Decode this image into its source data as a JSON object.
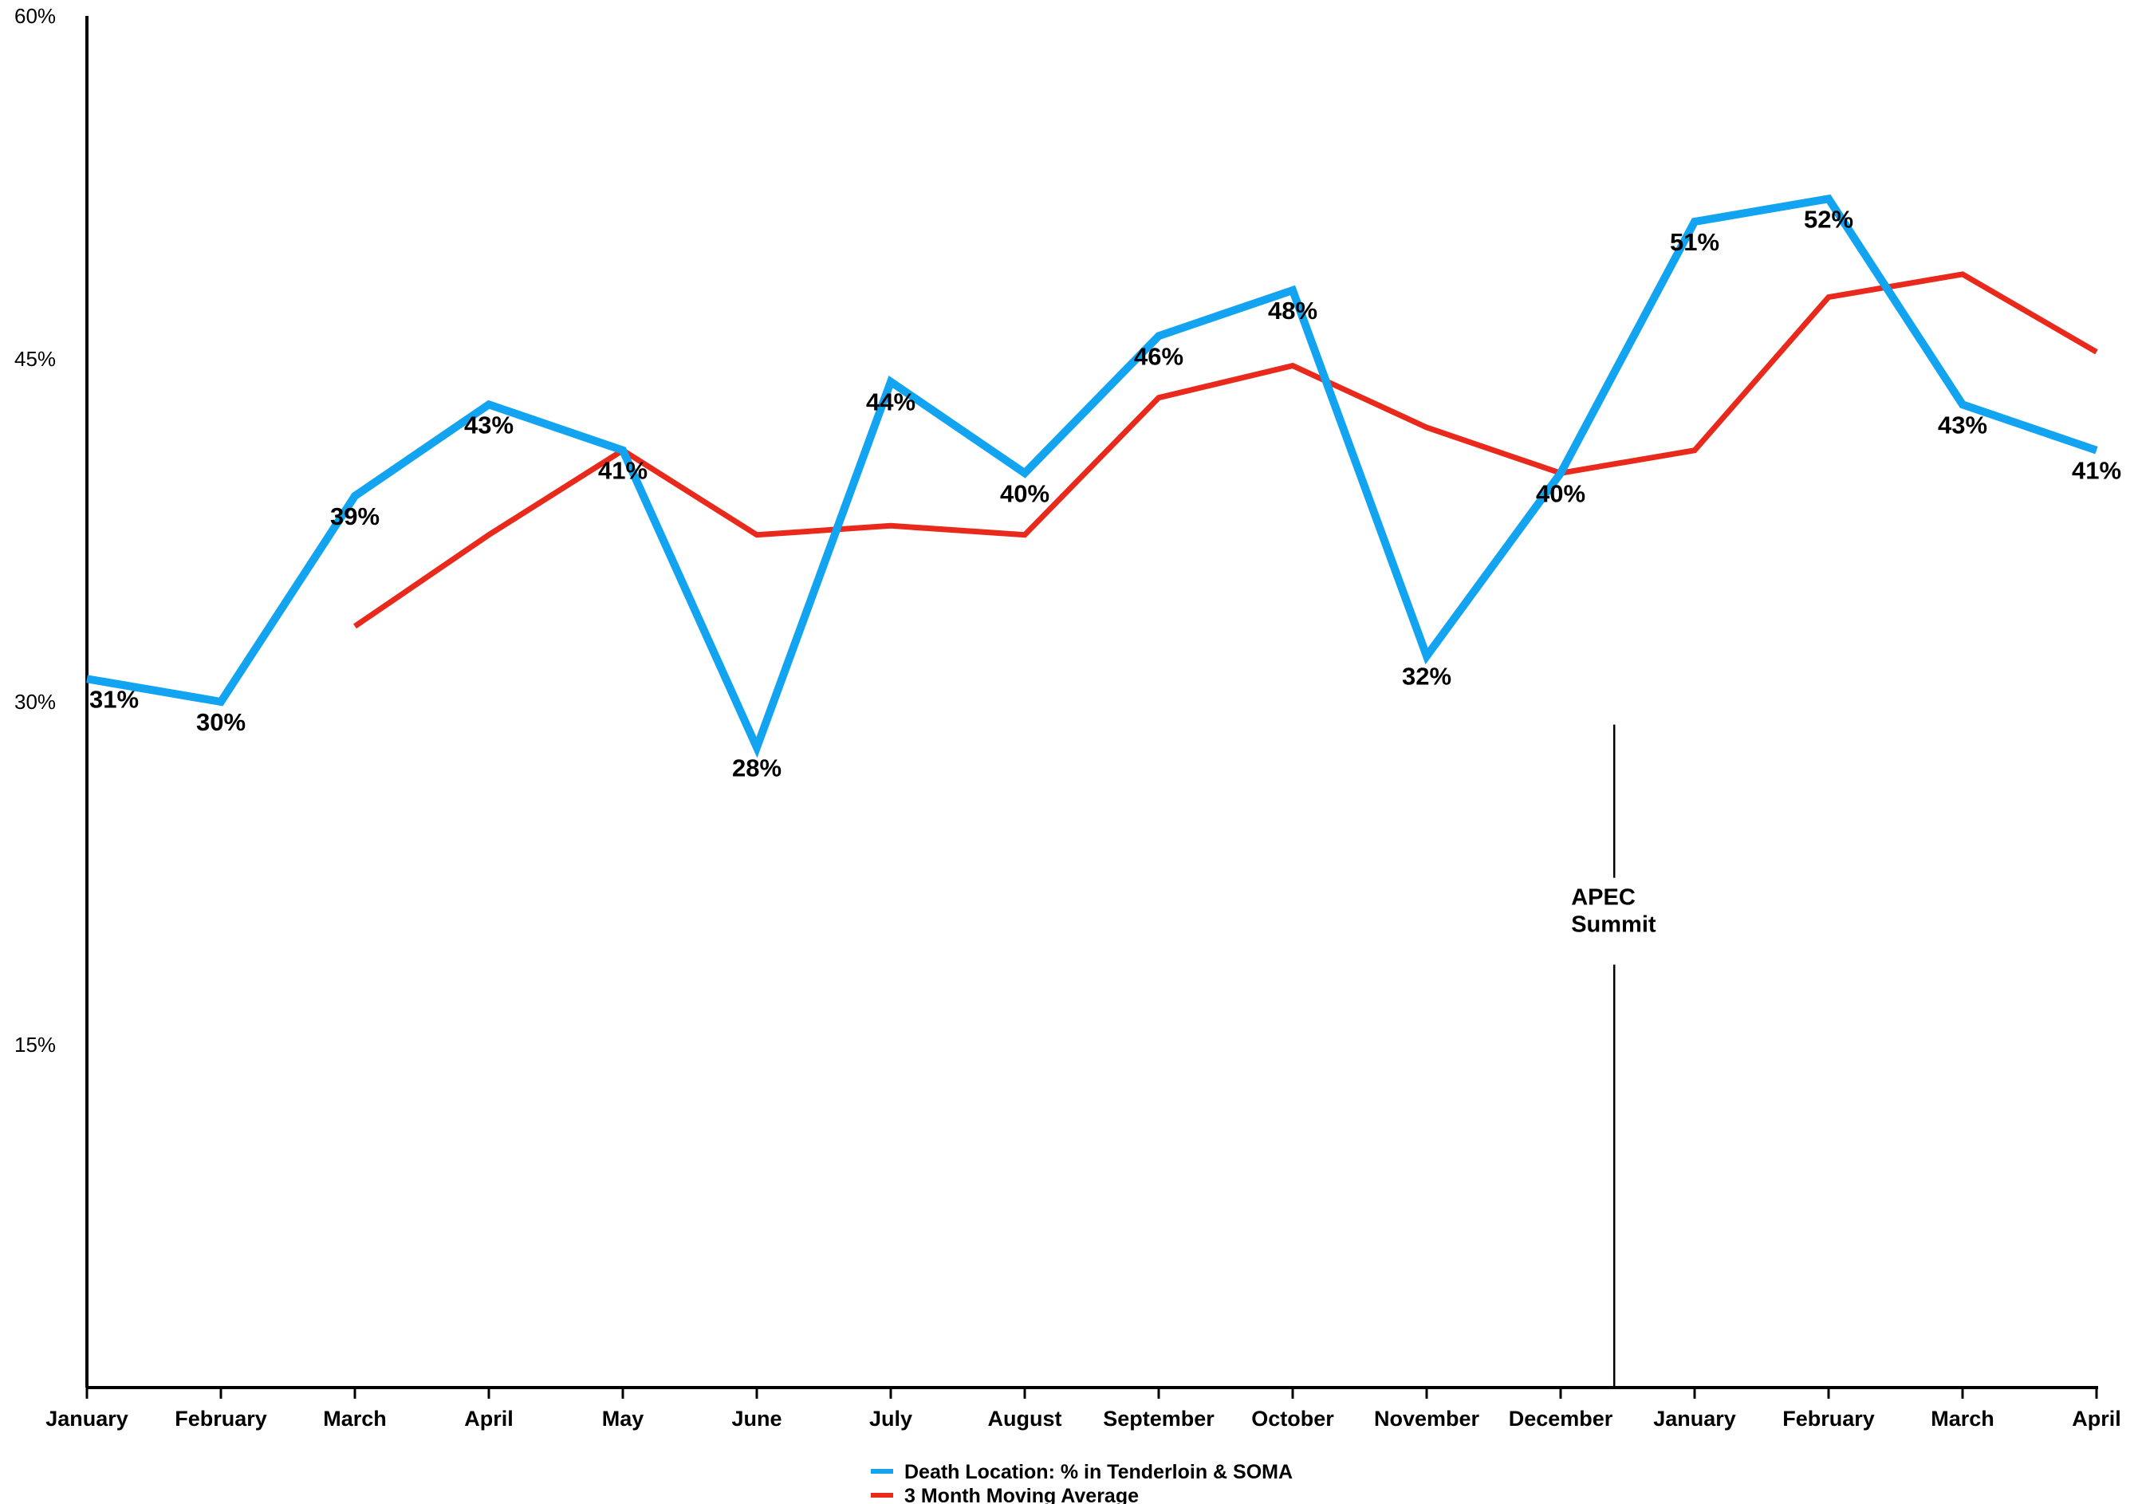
{
  "chart_data": {
    "type": "line",
    "title": "",
    "xlabel": "",
    "ylabel": "",
    "ylim": [
      0,
      60
    ],
    "yticks": [
      "15%",
      "30%",
      "45%",
      "60%"
    ],
    "ytick_values": [
      15,
      30,
      45,
      60
    ],
    "categories": [
      "January",
      "February",
      "March",
      "April",
      "May",
      "June",
      "July",
      "August",
      "September",
      "October",
      "November",
      "December",
      "January",
      "February",
      "March",
      "April"
    ],
    "grid": false,
    "legend_position": "bottom-center",
    "series": [
      {
        "name": "Death Location: % in Tenderloin & SOMA",
        "color": "#12a4f0",
        "values": [
          31,
          30,
          39,
          43,
          41,
          28,
          44,
          40,
          46,
          48,
          32,
          40,
          51,
          52,
          43,
          41
        ],
        "labels": [
          "31%",
          "30%",
          "39%",
          "43%",
          "41%",
          "28%",
          "44%",
          "40%",
          "46%",
          "48%",
          "32%",
          "40%",
          "51%",
          "52%",
          "43%",
          "41%"
        ]
      },
      {
        "name": "3 Month Moving Average",
        "color": "#e8291c",
        "values": [
          null,
          null,
          33.3,
          37.3,
          41,
          37.3,
          37.7,
          37.3,
          43.3,
          44.7,
          42,
          40,
          41,
          47.7,
          48.7,
          45.3
        ]
      }
    ],
    "annotation": {
      "text_line1": "APEC",
      "text_line2": "Summit",
      "x_value": 11.4
    }
  }
}
